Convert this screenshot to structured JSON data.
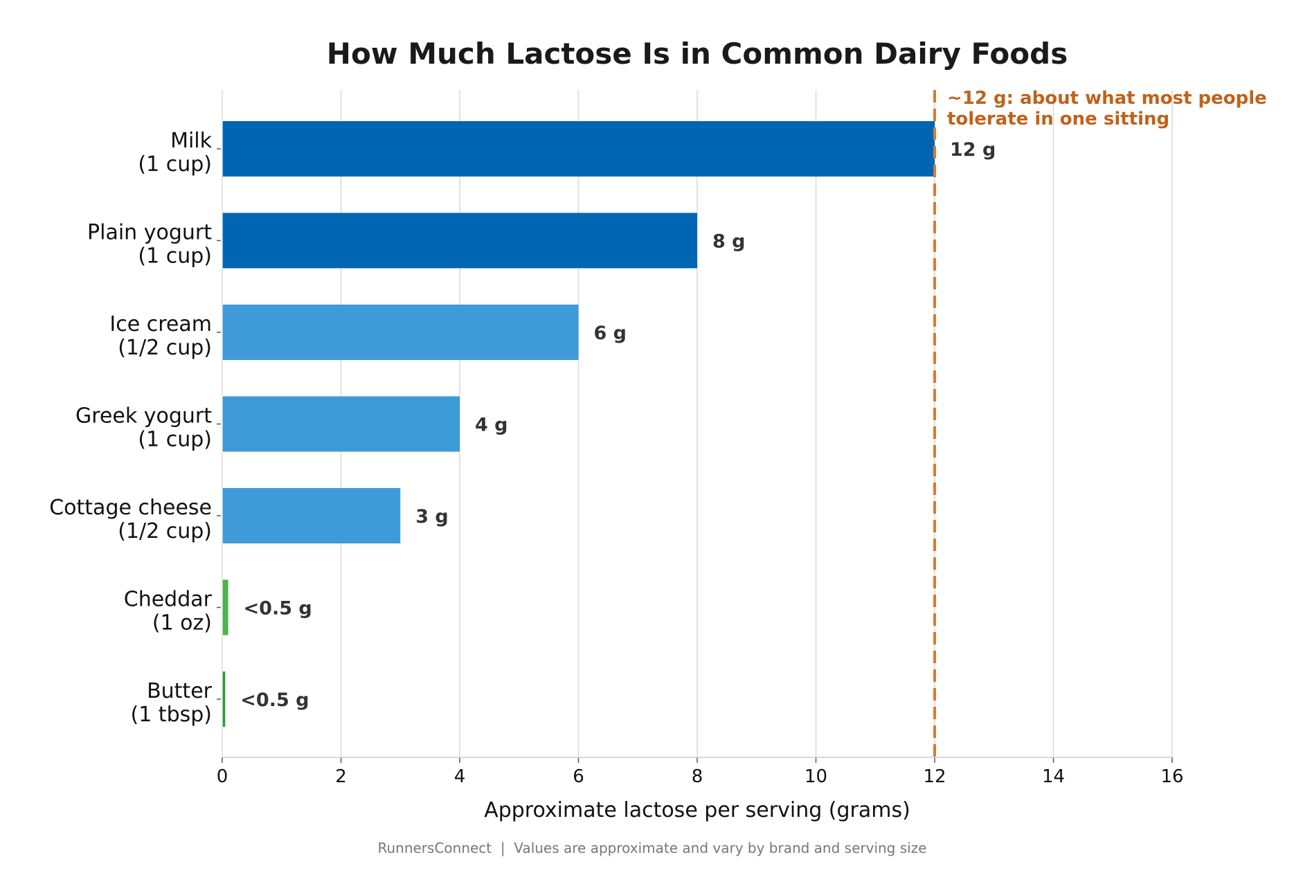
{
  "chart_data": {
    "type": "bar",
    "orientation": "horizontal",
    "title": "How Much Lactose Is in Common Dairy Foods",
    "xlabel": "Approximate lactose per serving (grams)",
    "ylabel": "",
    "xlim": [
      0,
      16
    ],
    "xticks": [
      "0",
      "2",
      "4",
      "6",
      "8",
      "10",
      "12",
      "14",
      "16"
    ],
    "grid": "vertical",
    "categories": [
      {
        "line1": "Milk",
        "line2": "(1 cup)"
      },
      {
        "line1": "Plain yogurt",
        "line2": "(1 cup)"
      },
      {
        "line1": "Ice cream",
        "line2": "(1/2 cup)"
      },
      {
        "line1": "Greek yogurt",
        "line2": "(1 cup)"
      },
      {
        "line1": "Cottage cheese",
        "line2": "(1/2 cup)"
      },
      {
        "line1": "Cheddar",
        "line2": "(1 oz)"
      },
      {
        "line1": "Butter",
        "line2": "(1 tbsp)"
      }
    ],
    "values": [
      12,
      8,
      6,
      4,
      3,
      0.1,
      0.05
    ],
    "value_labels": [
      "12 g",
      "8 g",
      "6 g",
      "4 g",
      "3 g",
      "<0.5 g",
      "<0.5 g"
    ],
    "bar_colors": [
      "#0066b3",
      "#0066b3",
      "#3f9ad8",
      "#3f9ad8",
      "#3f9ad8",
      "#4db34d",
      "#2ca02c"
    ],
    "reference_line": {
      "value": 12,
      "color": "#d97a30",
      "style": "dashed",
      "label_line1": "~12 g: about what most people",
      "label_line2": "tolerate in one sitting",
      "label_color": "#c0621a"
    },
    "footer": "RunnersConnect  |  Values are approximate and vary by brand and serving size"
  }
}
